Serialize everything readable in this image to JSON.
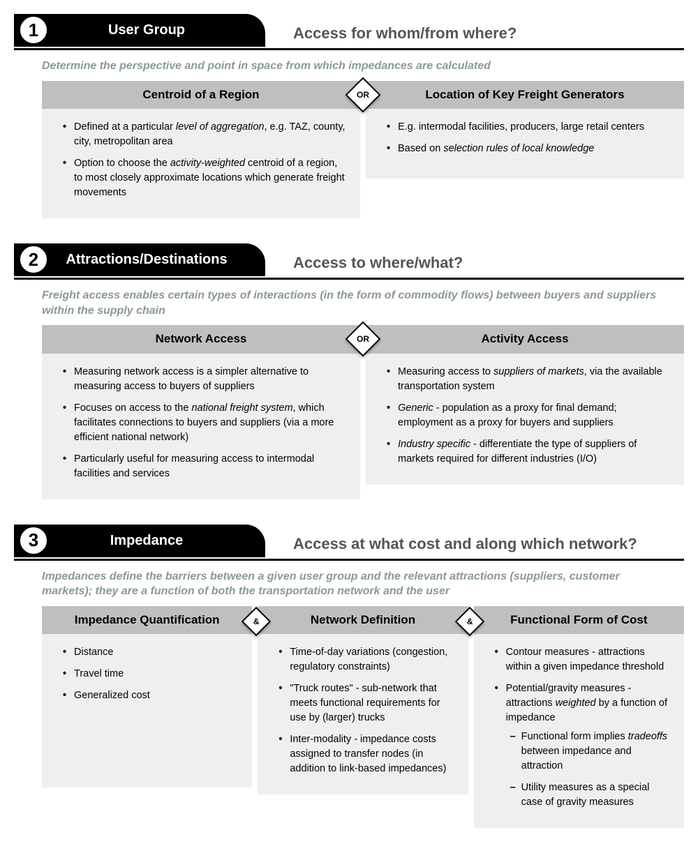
{
  "colors": {
    "tab_bg": "#000000",
    "tab_fg": "#ffffff",
    "badge_bg": "#ffffff",
    "badge_border": "#000000",
    "header_bg": "#bfbfbf",
    "body_bg": "#efefef",
    "subtitle_color": "#8a9a91",
    "question_color": "#555555"
  },
  "connectors": {
    "or": "OR",
    "and": "&"
  },
  "sections": [
    {
      "num": "1",
      "title": "User Group",
      "question": "Access for whom/from where?",
      "subtitle": "Determine the perspective and point in space from which impedances are calculated",
      "connector": "or",
      "cols": [
        {
          "header": "Centroid of a Region",
          "bullets": [
            "Defined at a particular <em>level of aggregation</em>, e.g. TAZ, county, city, metropolitan area",
            "Option to choose the <em>activity-weighted</em> centroid of a region, to most closely approximate locations which generate freight movements"
          ]
        },
        {
          "header": "Location of Key Freight Generators",
          "bullets": [
            "E.g. intermodal facilities, producers, large retail centers",
            "Based on <em>selection rules of local knowledge</em>"
          ]
        }
      ]
    },
    {
      "num": "2",
      "title": "Attractions/Destinations",
      "question": "Access to where/what?",
      "subtitle": "Freight access enables certain types of interactions (in the form of commodity flows) between buyers and suppliers within the supply chain",
      "connector": "or",
      "cols": [
        {
          "header": "Network Access",
          "bullets": [
            "Measuring network access is a simpler alternative to measuring access to buyers of suppliers",
            "Focuses on access to the <em>national freight system</em>, which facilitates connections to buyers and suppliers (via a more efficient national network)",
            "Particularly useful for measuring access to intermodal facilities and services"
          ]
        },
        {
          "header": "Activity Access",
          "bullets": [
            "Measuring access to <em>suppliers of markets</em>, via the available transportation system",
            "<em>Generic</em> - population as a proxy for final demand; employment as a proxy for buyers and suppliers",
            "<em>Industry specific</em> - differentiate the type of suppliers of markets required for different industries (I/O)"
          ]
        }
      ]
    },
    {
      "num": "3",
      "title": "Impedance",
      "question": "Access at what cost and along which network?",
      "subtitle": "Impedances define the barriers between a given user group and the relevant attractions (suppliers, customer markets); they are a function of both the transportation network and the user",
      "connector": "and",
      "cols": [
        {
          "header": "Impedance Quantification",
          "bullets": [
            "Distance",
            "Travel time",
            "Generalized cost"
          ]
        },
        {
          "header": "Network Definition",
          "bullets": [
            "Time-of-day variations (congestion, regulatory constraints)",
            "\"Truck routes\" - sub-network that meets functional requirements for use by (larger) trucks",
            "Inter-modality - impedance costs assigned to transfer nodes (in addition to link-based impedances)"
          ]
        },
        {
          "header": "Functional Form of Cost",
          "bullets": [
            "Contour measures - attractions within a given impedance threshold",
            "Potential/gravity measures - attractions <em>weighted</em> by a function of impedance<ul class=\"sub\"><li>Functional form implies <em>tradeoffs</em> between impedance and attraction</li><li>Utility measures as a special case of gravity measures</li></ul>"
          ]
        }
      ]
    }
  ]
}
